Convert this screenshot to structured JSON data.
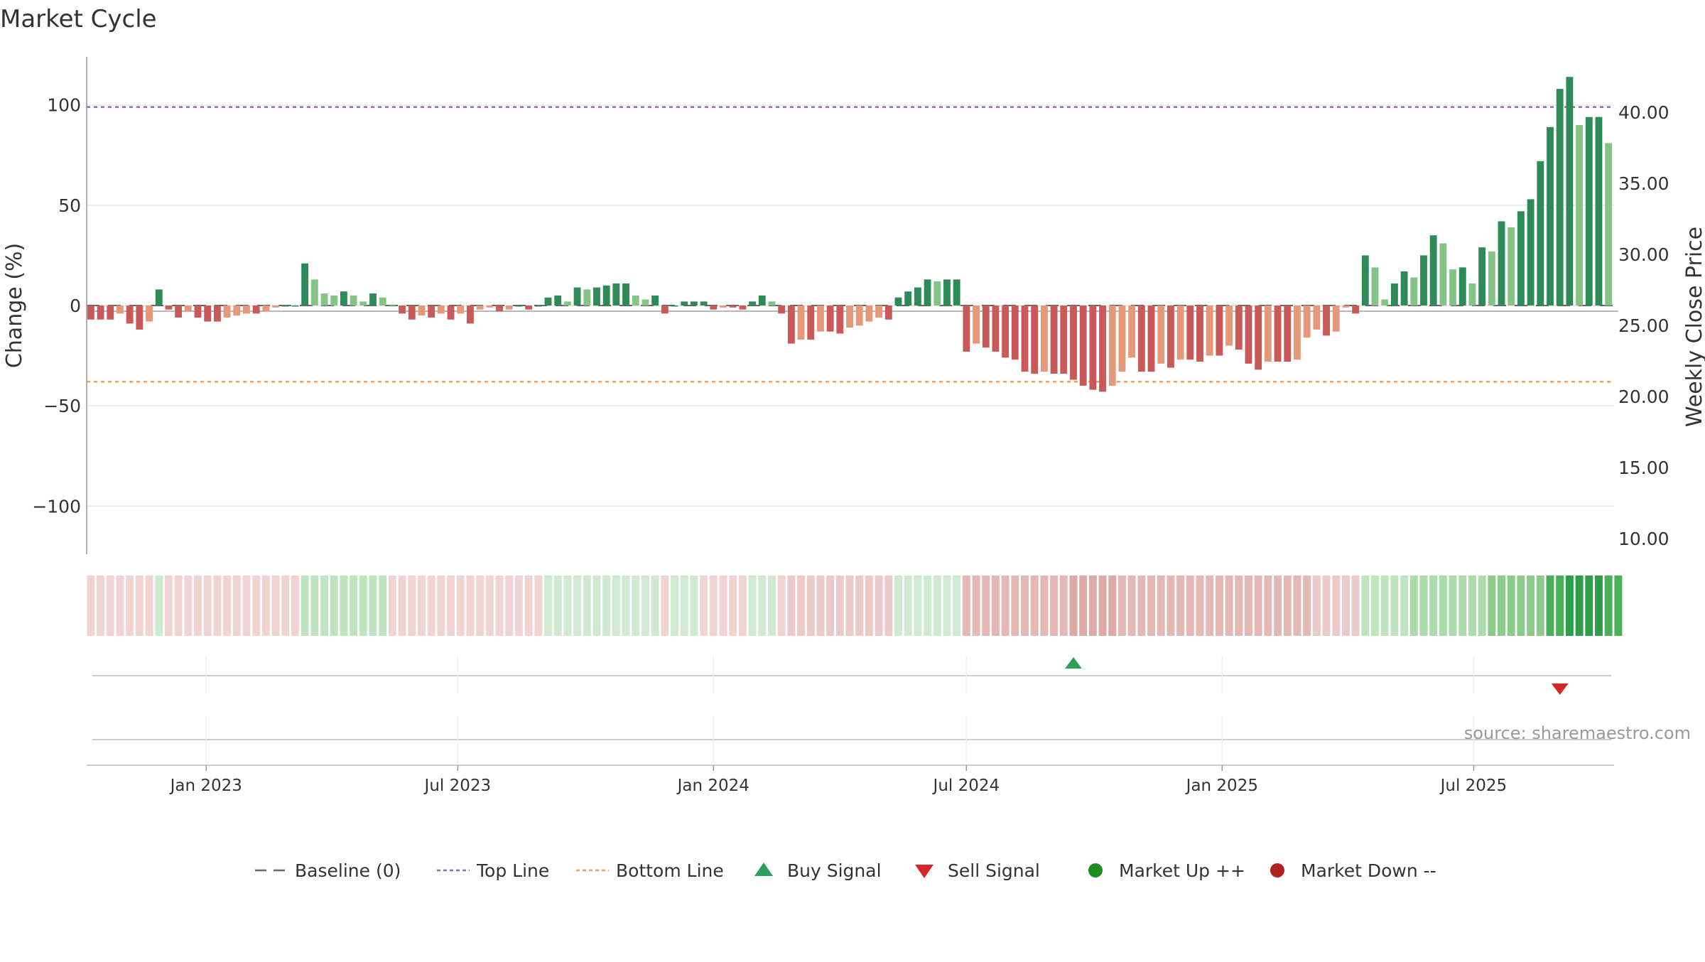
{
  "title": "Market Cycle",
  "source": "source: sharemaestro.com",
  "colors": {
    "up_strong": "#2e8b57",
    "up_light": "#86c386",
    "down_strong": "#c85a5a",
    "down_light": "#e6987a",
    "top_line": "#9467bd",
    "bottom_line": "#f0a060",
    "baseline": "#666666",
    "buy": "#2ca05a",
    "sell": "#d62728",
    "market_up": "#1f8c1f",
    "market_down": "#b22222"
  },
  "legend": [
    {
      "label": "Baseline (0)",
      "symbol": "dash",
      "color": "#666666"
    },
    {
      "label": "Top Line",
      "symbol": "dot",
      "color": "#9467bd"
    },
    {
      "label": "Bottom Line",
      "symbol": "dot",
      "color": "#f0a060"
    },
    {
      "label": "Buy Signal",
      "symbol": "triangle-up",
      "color": "#2ca05a"
    },
    {
      "label": "Sell Signal",
      "symbol": "triangle-down",
      "color": "#d62728"
    },
    {
      "label": "Market Up ++",
      "symbol": "circle",
      "color": "#1f8c1f"
    },
    {
      "label": "Market Down --",
      "symbol": "circle",
      "color": "#b22222"
    }
  ],
  "chart_data": {
    "type": "bar",
    "ylabel": "Change (%)",
    "y2label": "Weekly Close Price",
    "ylim": [
      -124,
      124
    ],
    "y2lim": [
      8.9,
      43.9
    ],
    "yticks": [
      100,
      50,
      0,
      -50,
      -100
    ],
    "ytick_labels": [
      "100",
      "50",
      "0",
      "−50",
      "−100"
    ],
    "y2ticks": [
      "40.00",
      "35.00",
      "30.00",
      "25.00",
      "20.00",
      "15.00",
      "10.00"
    ],
    "top_line": 99,
    "bottom_line": -38,
    "x_start": "2022-10-10",
    "week_days": 7,
    "xticks": [
      {
        "date": "2023-01-01",
        "label": "Jan 2023"
      },
      {
        "date": "2023-07-01",
        "label": "Jul 2023"
      },
      {
        "date": "2024-01-01",
        "label": "Jan 2024"
      },
      {
        "date": "2024-07-01",
        "label": "Jul 2024"
      },
      {
        "date": "2025-01-01",
        "label": "Jan 2025"
      },
      {
        "date": "2025-07-01",
        "label": "Jul 2025"
      }
    ],
    "values": [
      -7,
      -7,
      -7,
      -4,
      -9,
      -12,
      -8,
      8,
      -2,
      -6,
      -3,
      -6,
      -8,
      -8,
      -6,
      -5,
      -4,
      -4,
      -3,
      -1,
      0,
      0,
      21,
      13,
      6,
      5,
      7,
      5,
      2,
      6,
      4,
      0,
      -4,
      -7,
      -5,
      -6,
      -4,
      -7,
      -4,
      -9,
      -2,
      -1,
      -3,
      -2,
      0,
      -2,
      0,
      4,
      5,
      2,
      9,
      8,
      9,
      10,
      11,
      11,
      5,
      3,
      5,
      -4,
      0,
      2,
      2,
      2,
      -2,
      -1,
      -1,
      -2,
      2,
      5,
      2,
      -4,
      -19,
      -17,
      -17,
      -13,
      -13,
      -14,
      -11,
      -10,
      -8,
      -6,
      -7,
      4,
      7,
      9,
      13,
      12,
      13,
      13,
      -23,
      -19,
      -21,
      -23,
      -26,
      -27,
      -33,
      -34,
      -33,
      -34,
      -34,
      -37,
      -40,
      -42,
      -43,
      -40,
      -33,
      -26,
      -33,
      -33,
      -29,
      -31,
      -27,
      -27,
      -28,
      -25,
      -25,
      -20,
      -22,
      -29,
      -32,
      -28,
      -28,
      -28,
      -27,
      -16,
      -12,
      -15,
      -13,
      -1,
      -4,
      25,
      19,
      3,
      11,
      17,
      14,
      25,
      35,
      31,
      18,
      19,
      11,
      29,
      27,
      42,
      39,
      47,
      53,
      72,
      89,
      108,
      114,
      90,
      94,
      94,
      81
    ],
    "price": [
      26,
      26,
      26,
      26,
      26,
      26,
      26,
      26,
      26,
      26,
      26,
      26,
      26,
      26,
      26,
      26,
      26,
      26,
      26,
      26,
      26,
      26,
      26,
      26,
      26,
      26,
      26,
      26,
      26,
      26,
      26,
      26,
      26,
      26,
      26,
      26,
      26,
      26,
      26,
      26,
      26,
      26,
      26,
      26,
      26,
      26,
      26,
      26,
      26,
      26,
      26,
      26,
      26,
      26,
      26,
      26,
      26,
      26,
      26,
      26,
      26,
      26,
      26,
      26,
      26,
      26,
      26,
      26,
      26,
      26,
      26,
      26,
      26,
      26,
      26,
      26,
      26,
      26,
      26,
      26,
      26,
      26,
      26,
      26,
      26,
      26,
      26,
      26,
      26,
      26,
      26,
      26,
      26,
      26,
      26,
      26,
      26,
      26,
      26,
      26,
      26,
      26,
      26,
      26,
      26,
      26,
      26,
      26,
      26,
      26,
      26,
      26,
      26,
      26,
      26,
      26,
      26,
      26,
      26,
      26,
      26,
      26,
      26,
      26,
      26,
      26,
      26,
      26,
      26,
      26,
      26,
      26,
      26,
      26,
      26,
      26,
      26,
      26,
      26,
      26,
      26,
      26,
      26,
      26,
      26,
      26,
      26,
      26,
      26,
      26,
      26,
      26,
      26,
      26,
      26,
      26,
      26,
      26
    ],
    "intensity_band": [
      -1,
      -1,
      -1,
      -1,
      -1,
      -1,
      -1,
      1,
      -1,
      -1,
      -1,
      -1,
      -1,
      -1,
      -1,
      -1,
      -1,
      -1,
      -1,
      -1,
      -1,
      -1,
      2,
      2,
      2,
      2,
      2,
      2,
      2,
      2,
      2,
      -1,
      -1,
      -1,
      -1,
      -1,
      -1,
      -1,
      -1,
      -1,
      -1,
      -1,
      -1,
      -1,
      -1,
      -1,
      -1,
      1,
      1,
      1,
      1,
      1,
      1,
      1,
      1,
      1,
      1,
      1,
      1,
      -1,
      1,
      1,
      1,
      -1,
      -1,
      -1,
      -1,
      -1,
      1,
      1,
      1,
      -1,
      -2,
      -2,
      -2,
      -2,
      -2,
      -2,
      -2,
      -2,
      -2,
      -2,
      -2,
      1,
      1,
      1,
      1,
      1,
      1,
      1,
      -3,
      -3,
      -3,
      -3,
      -3,
      -3,
      -3,
      -3,
      -3,
      -3,
      -3,
      -4,
      -4,
      -4,
      -4,
      -4,
      -3,
      -3,
      -3,
      -3,
      -3,
      -3,
      -3,
      -3,
      -3,
      -3,
      -3,
      -3,
      -3,
      -3,
      -3,
      -3,
      -3,
      -3,
      -3,
      -3,
      -2,
      -2,
      -2,
      -2,
      -2,
      2,
      2,
      2,
      2,
      2,
      3,
      3,
      3,
      3,
      3,
      3,
      3,
      3,
      4,
      4,
      4,
      4,
      4,
      4,
      5,
      5,
      6,
      6,
      6,
      6,
      5,
      5
    ],
    "buy_signals": [
      101
    ],
    "sell_signals": [
      151
    ]
  }
}
